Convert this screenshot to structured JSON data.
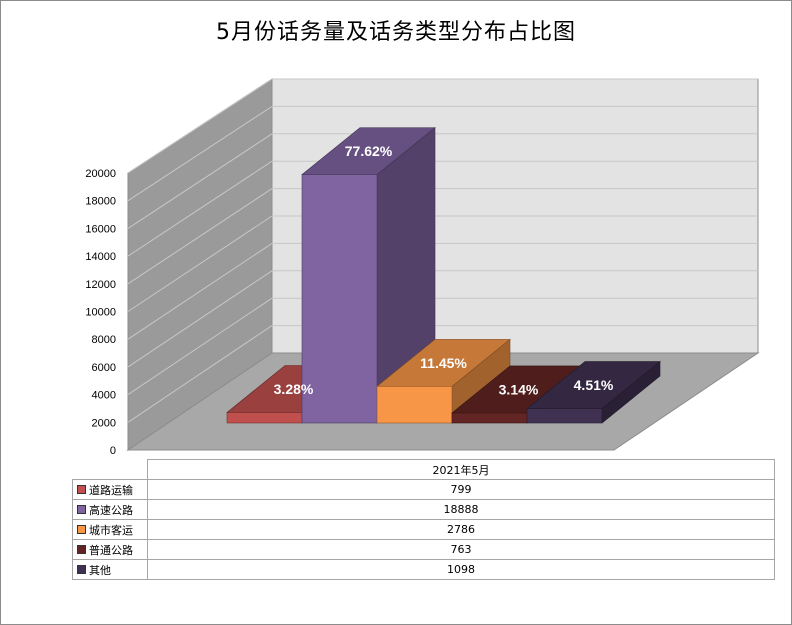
{
  "chart_data": {
    "type": "bar",
    "title": "5月份话务量及话务类型分布占比图",
    "category": "2021年5月",
    "ylim": [
      0,
      20000
    ],
    "yticks": [
      "0",
      "2000",
      "4000",
      "6000",
      "8000",
      "10000",
      "12000",
      "14000",
      "16000",
      "18000",
      "20000"
    ],
    "grid": true,
    "legend_placement": "bottom-table",
    "series": [
      {
        "name": "道路运输",
        "value": 799,
        "label": "3.28%",
        "color": "#c0504d"
      },
      {
        "name": "高速公路",
        "value": 18888,
        "label": "77.62%",
        "color": "#8064a2"
      },
      {
        "name": "城市客运",
        "value": 2786,
        "label": "11.45%",
        "color": "#f79646"
      },
      {
        "name": "普通公路",
        "value": 763,
        "label": "3.14%",
        "color": "#632523"
      },
      {
        "name": "其他",
        "value": 1098,
        "label": "4.51%",
        "color": "#403152"
      }
    ]
  },
  "table": {
    "header": "2021年5月",
    "rows": [
      {
        "name": "道路运输",
        "value": "799"
      },
      {
        "name": "高速公路",
        "value": "18888"
      },
      {
        "name": "城市客运",
        "value": "2786"
      },
      {
        "name": "普通公路",
        "value": "763"
      },
      {
        "name": "其他",
        "value": "1098"
      }
    ]
  }
}
